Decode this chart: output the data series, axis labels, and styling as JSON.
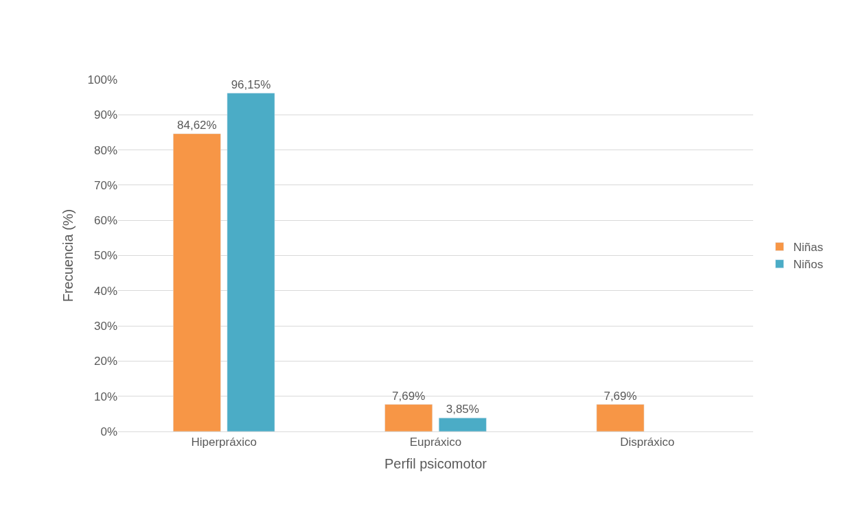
{
  "chart_data": {
    "type": "bar",
    "xlabel": "Perfil psicomotor",
    "ylabel": "Frecuencia (%)",
    "categories": [
      "Hiperpráxico",
      "Eupráxico",
      "Dispráxico"
    ],
    "series": [
      {
        "name": "Niñas",
        "color": "#f79646",
        "values": [
          84.62,
          7.69,
          7.69
        ],
        "value_labels": [
          "84,62%",
          "7,69%",
          "7,69%"
        ]
      },
      {
        "name": "Niños",
        "color": "#4bacc6",
        "values": [
          96.15,
          3.85,
          null
        ],
        "value_labels": [
          "96,15%",
          "3,85%",
          null
        ]
      }
    ],
    "ylim": [
      0,
      100
    ],
    "yticks": [
      {
        "value": 0,
        "label": "0%"
      },
      {
        "value": 10,
        "label": "10%"
      },
      {
        "value": 20,
        "label": "20%"
      },
      {
        "value": 30,
        "label": "30%"
      },
      {
        "value": 40,
        "label": "40%"
      },
      {
        "value": 50,
        "label": "50%"
      },
      {
        "value": 60,
        "label": "60%"
      },
      {
        "value": 70,
        "label": "70%"
      },
      {
        "value": 80,
        "label": "80%"
      },
      {
        "value": 90,
        "label": "90%"
      },
      {
        "value": 100,
        "label": "100%"
      }
    ],
    "grid": "y",
    "legend": "right"
  }
}
